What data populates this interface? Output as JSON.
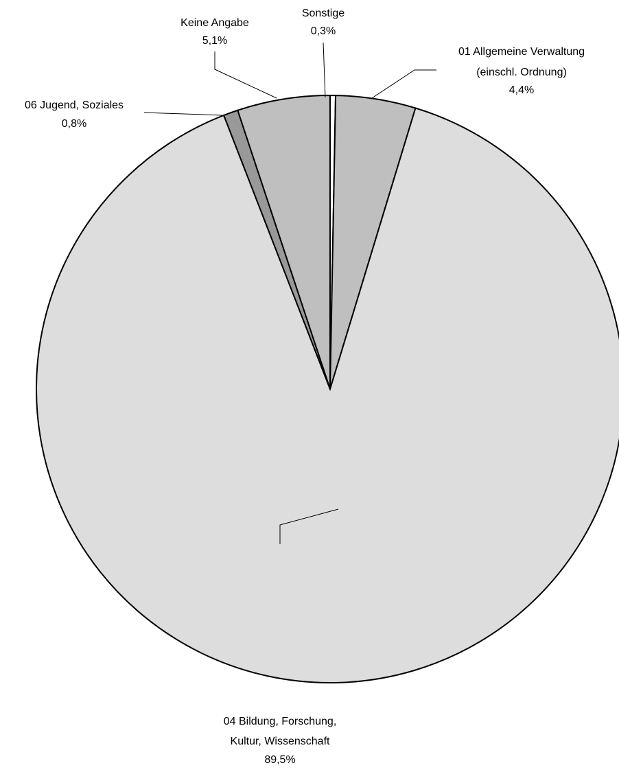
{
  "chart_data": {
    "type": "pie",
    "title": "",
    "slices": [
      {
        "label": "Sonstige",
        "value": 0.3,
        "value_label": "0,3%",
        "color": "#ffffff"
      },
      {
        "label": "01 Allgemeine Verwaltung (einschl. Ordnung)",
        "label_lines": [
          "01 Allgemeine Verwaltung",
          "(einschl. Ordnung)"
        ],
        "value": 4.4,
        "value_label": "4,4%",
        "color": "#bfbfbf"
      },
      {
        "label": "04 Bildung, Forschung, Kultur, Wissenschaft",
        "label_lines": [
          "04 Bildung, Forschung,",
          "Kultur, Wissenschaft"
        ],
        "value": 89.5,
        "value_label": "89,5%",
        "color": "#dddddd"
      },
      {
        "label": "06 Jugend, Soziales",
        "value": 0.8,
        "value_label": "0,8%",
        "color": "#999999"
      },
      {
        "label": "Keine Angabe",
        "value": 5.1,
        "value_label": "5,1%",
        "color": "#bfbfbf"
      }
    ]
  }
}
